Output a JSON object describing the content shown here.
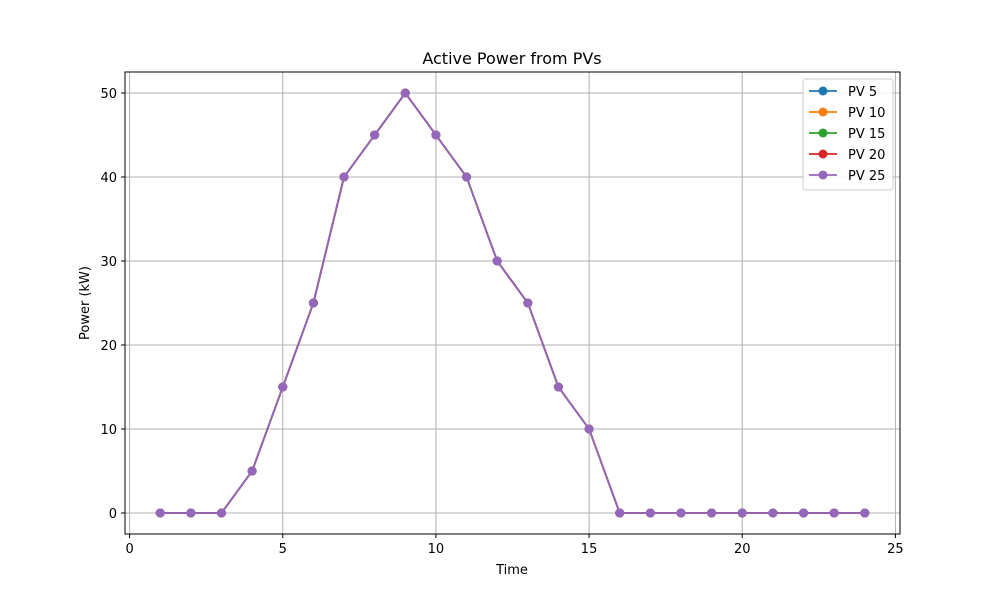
{
  "chart_data": {
    "type": "line",
    "title": "Active Power from PVs",
    "xlabel": "Time",
    "ylabel": "Power (kW)",
    "xlim": [
      -0.15,
      25.15
    ],
    "ylim": [
      -2.5,
      52.5
    ],
    "xticks": [
      0,
      5,
      10,
      15,
      20,
      25
    ],
    "yticks": [
      0,
      10,
      20,
      30,
      40,
      50
    ],
    "grid": true,
    "legend_position": "top-right",
    "x": [
      1,
      2,
      3,
      4,
      5,
      6,
      7,
      8,
      9,
      10,
      11,
      12,
      13,
      14,
      15,
      16,
      17,
      18,
      19,
      20,
      21,
      22,
      23,
      24
    ],
    "series": [
      {
        "name": "PV 5",
        "color": "#1f77b4",
        "values": [
          0,
          0,
          0,
          5,
          15,
          25,
          40,
          45,
          50,
          45,
          40,
          30,
          25,
          15,
          10,
          0,
          0,
          0,
          0,
          0,
          0,
          0,
          0,
          0
        ]
      },
      {
        "name": "PV 10",
        "color": "#ff7f0e",
        "values": [
          0,
          0,
          0,
          5,
          15,
          25,
          40,
          45,
          50,
          45,
          40,
          30,
          25,
          15,
          10,
          0,
          0,
          0,
          0,
          0,
          0,
          0,
          0,
          0
        ]
      },
      {
        "name": "PV 15",
        "color": "#2ca02c",
        "values": [
          0,
          0,
          0,
          5,
          15,
          25,
          40,
          45,
          50,
          45,
          40,
          30,
          25,
          15,
          10,
          0,
          0,
          0,
          0,
          0,
          0,
          0,
          0,
          0
        ]
      },
      {
        "name": "PV 20",
        "color": "#d62728",
        "values": [
          0,
          0,
          0,
          5,
          15,
          25,
          40,
          45,
          50,
          45,
          40,
          30,
          25,
          15,
          10,
          0,
          0,
          0,
          0,
          0,
          0,
          0,
          0,
          0
        ]
      },
      {
        "name": "PV 25",
        "color": "#9467bd",
        "values": [
          0,
          0,
          0,
          5,
          15,
          25,
          40,
          45,
          50,
          45,
          40,
          30,
          25,
          15,
          10,
          0,
          0,
          0,
          0,
          0,
          0,
          0,
          0,
          0
        ]
      }
    ]
  }
}
